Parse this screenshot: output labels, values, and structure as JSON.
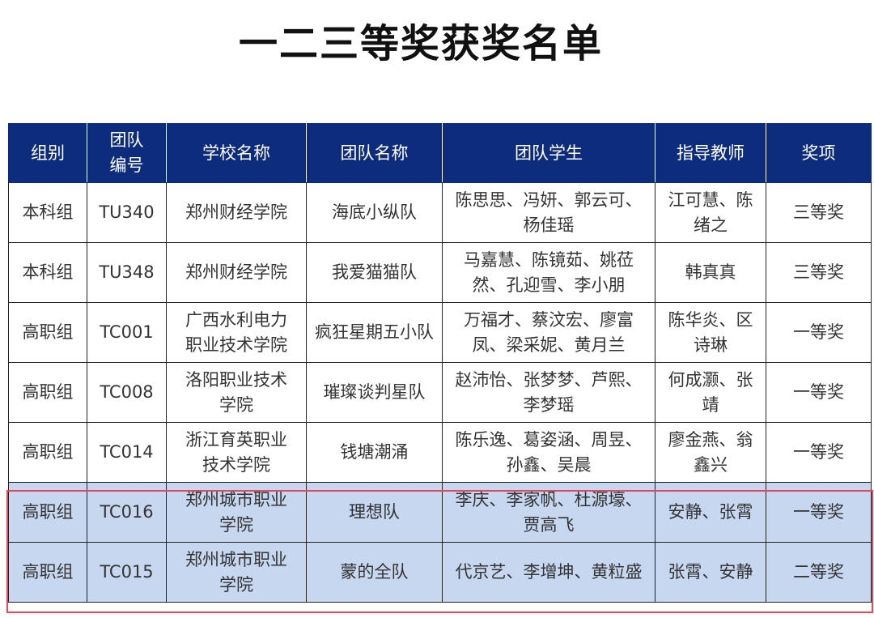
{
  "title": "一二三等奖获奖名单",
  "colors": {
    "header_bg": "#0d2c7e",
    "highlight_bg": "#c6d7ef",
    "highlight_border": "#e8485a"
  },
  "columns": [
    "组别",
    "团队编号",
    "学校名称",
    "团队名称",
    "团队学生",
    "指导教师",
    "奖项"
  ],
  "rows": [
    [
      "本科组",
      "TU340",
      "郑州财经学院",
      "海底小纵队",
      "陈思思、冯妍、郭云可、杨佳瑶",
      "江可慧、陈绪之",
      "三等奖"
    ],
    [
      "本科组",
      "TU348",
      "郑州财经学院",
      "我爱猫猫队",
      "马嘉慧、陈镜茹、姚莅然、孔迎雪、李小朋",
      "韩真真",
      "三等奖"
    ],
    [
      "高职组",
      "TC001",
      "广西水利电力职业技术学院",
      "疯狂星期五小队",
      "万福才、蔡汶宏、廖富凤、梁采妮、黄月兰",
      "陈华炎、区诗琳",
      "一等奖"
    ],
    [
      "高职组",
      "TC008",
      "洛阳职业技术学院",
      "璀璨谈判星队",
      "赵沛怡、张梦梦、芦熙、李梦瑶",
      "何成灏、张靖",
      "一等奖"
    ],
    [
      "高职组",
      "TC014",
      "浙江育英职业技术学院",
      "钱塘潮涌",
      "陈乐逸、葛姿涵、周昱、孙鑫、吴晨",
      "廖金燕、翁鑫兴",
      "一等奖"
    ],
    [
      "高职组",
      "TC016",
      "郑州城市职业学院",
      "理想队",
      "李庆、李家帆、杜源壕、贾高飞",
      "安静、张霄",
      "一等奖"
    ],
    [
      "高职组",
      "TC015",
      "郑州城市职业学院",
      "蒙的全队",
      "代京艺、李增坤、黄粒盛",
      "张霄、安静",
      "二等奖"
    ]
  ],
  "highlighted_rows": [
    5,
    6
  ]
}
